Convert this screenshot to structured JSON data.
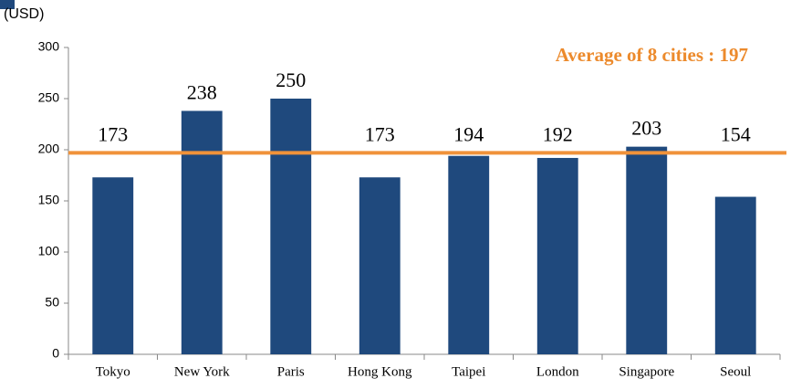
{
  "chart_data": {
    "type": "bar",
    "y_label": "(USD)",
    "categories": [
      "Tokyo",
      "New York",
      "Paris",
      "Hong Kong",
      "Taipei",
      "London",
      "Singapore",
      "Seoul"
    ],
    "values": [
      173,
      238,
      250,
      173,
      194,
      192,
      203,
      154
    ],
    "color": "#1f497d",
    "average": 197,
    "average_color": "#f0923a",
    "annotation": "Average of 8 cities : 197",
    "ylim": [
      0,
      300
    ],
    "yticks": [
      0,
      50,
      100,
      150,
      200,
      250,
      300
    ],
    "grid": false
  }
}
